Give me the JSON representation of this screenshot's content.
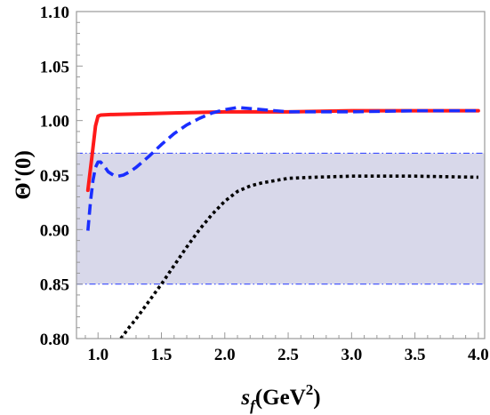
{
  "chart_data": {
    "type": "line",
    "xlim": [
      0.83,
      4.05
    ],
    "ylim": [
      0.8,
      1.1
    ],
    "grid": false,
    "legend": "none",
    "x_ticks": [
      1.0,
      1.5,
      2.0,
      2.5,
      3.0,
      3.5,
      4.0
    ],
    "x_tick_labels": [
      "1.0",
      "1.5",
      "2.0",
      "2.5",
      "3.0",
      "3.5",
      "4.0"
    ],
    "y_ticks": [
      0.8,
      0.85,
      0.9,
      0.95,
      1.0,
      1.05,
      1.1
    ],
    "y_tick_labels": [
      "0.80",
      "0.85",
      "0.90",
      "0.95",
      "1.00",
      "1.05",
      "1.10"
    ],
    "xlabel": {
      "base": "s",
      "sub": "f",
      "paren_open": "(GeV",
      "sup": "2",
      "paren_close": ")"
    },
    "ylabel": "Θ'(0)",
    "band": {
      "y_low": 0.85,
      "y_high": 0.97,
      "fill": "#d8d8ea",
      "edge_color": "#3a4cff"
    },
    "series": [
      {
        "style": "solid",
        "color": "#ff1a1a",
        "x": [
          0.92,
          0.95,
          0.98,
          1.0,
          1.02,
          1.1,
          1.3,
          1.6,
          2.0,
          2.5,
          3.0,
          3.5,
          4.0
        ],
        "y": [
          0.936,
          0.965,
          0.995,
          1.004,
          1.005,
          1.0055,
          1.006,
          1.007,
          1.008,
          1.008,
          1.009,
          1.009,
          1.009
        ]
      },
      {
        "style": "dashed",
        "color": "#1a2eff",
        "x": [
          0.92,
          0.94,
          0.96,
          0.98,
          1.0,
          1.02,
          1.05,
          1.08,
          1.12,
          1.16,
          1.2,
          1.25,
          1.3,
          1.4,
          1.5,
          1.6,
          1.7,
          1.8,
          1.9,
          2.0,
          2.1,
          2.2,
          2.3,
          2.4,
          2.5,
          2.7,
          3.0,
          3.5,
          4.0
        ],
        "y": [
          0.899,
          0.925,
          0.945,
          0.957,
          0.962,
          0.962,
          0.958,
          0.953,
          0.95,
          0.949,
          0.95,
          0.953,
          0.957,
          0.967,
          0.978,
          0.988,
          0.996,
          1.002,
          1.007,
          1.01,
          1.012,
          1.011,
          1.01,
          1.009,
          1.008,
          1.008,
          1.008,
          1.009,
          1.009
        ]
      },
      {
        "style": "dotted",
        "color": "#000000",
        "x": [
          1.18,
          1.25,
          1.3,
          1.4,
          1.5,
          1.6,
          1.7,
          1.8,
          1.9,
          2.0,
          2.1,
          2.2,
          2.3,
          2.5,
          2.7,
          3.0,
          3.5,
          4.0
        ],
        "y": [
          0.8,
          0.811,
          0.818,
          0.834,
          0.85,
          0.867,
          0.884,
          0.9,
          0.914,
          0.926,
          0.935,
          0.94,
          0.943,
          0.947,
          0.948,
          0.949,
          0.949,
          0.948
        ]
      }
    ]
  }
}
